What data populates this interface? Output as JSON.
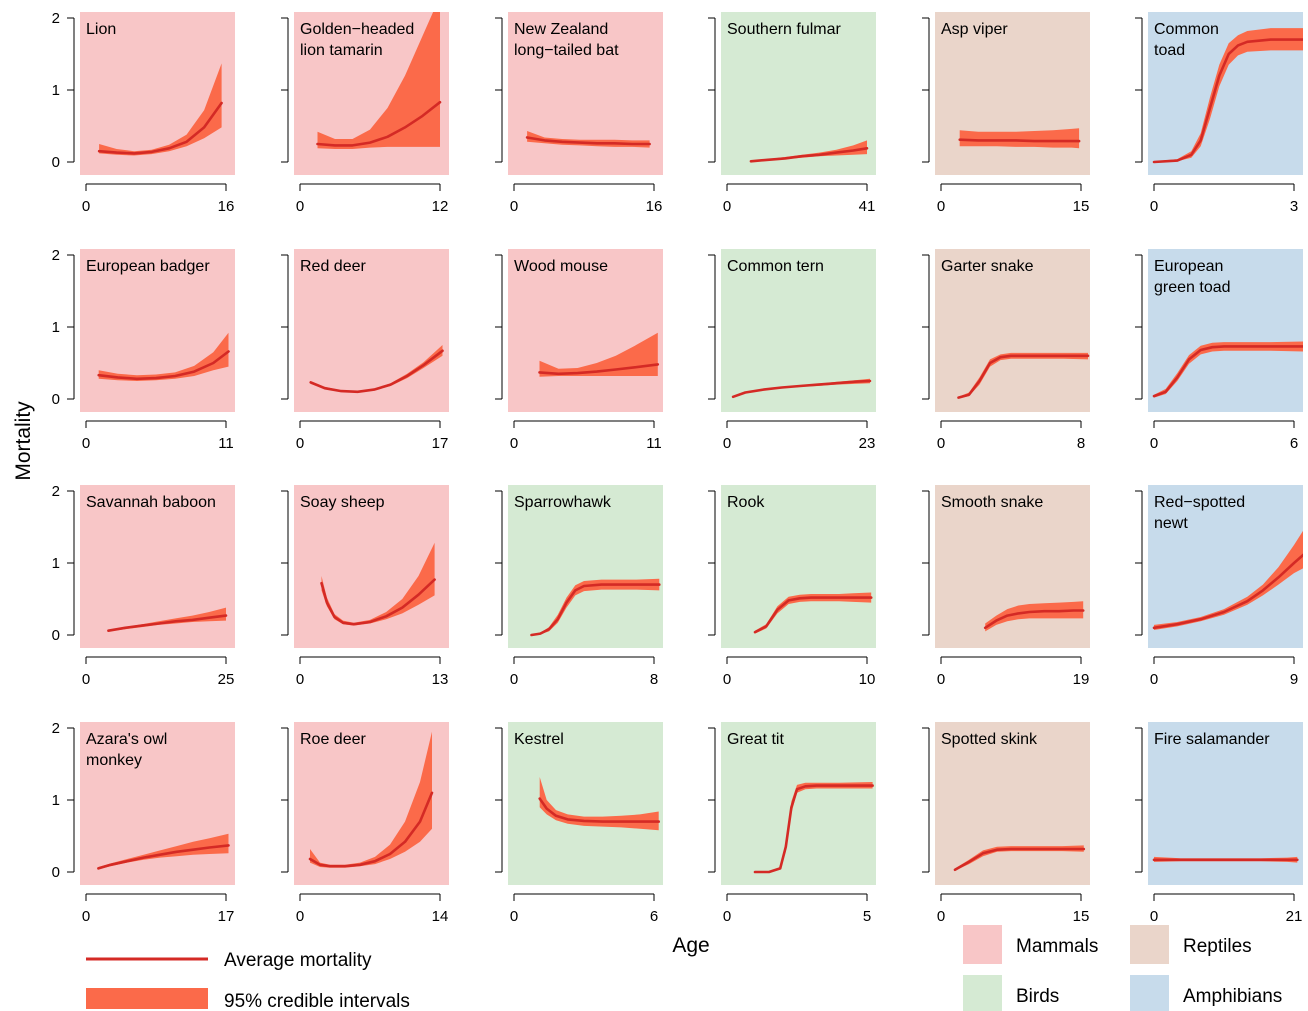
{
  "figure": {
    "xlabel": "Age",
    "ylabel": "Mortality"
  },
  "legend": {
    "line_label": "Average mortality",
    "band_label": "95% credible intervals",
    "line_color": "#d42a25",
    "band_color": "#fb6a4a",
    "groups": [
      {
        "name": "Mammals",
        "color": "#f8c6c7"
      },
      {
        "name": "Birds",
        "color": "#d5ead3"
      },
      {
        "name": "Reptiles",
        "color": "#ead5ca"
      },
      {
        "name": "Amphibians",
        "color": "#c7dbeb"
      }
    ]
  },
  "chart_data": [
    {
      "type": "line",
      "title": "Lion",
      "group": "Mammals",
      "xlim": [
        0,
        16
      ],
      "ylim": [
        0,
        2
      ],
      "x": [
        1.5,
        3.5,
        5.5,
        7.5,
        9.5,
        11.5,
        13.5,
        15.5
      ],
      "y": [
        0.15,
        0.13,
        0.12,
        0.14,
        0.19,
        0.28,
        0.48,
        0.82
      ],
      "lower": [
        0.12,
        0.1,
        0.09,
        0.11,
        0.15,
        0.22,
        0.33,
        0.48
      ],
      "upper": [
        0.25,
        0.18,
        0.15,
        0.17,
        0.24,
        0.38,
        0.72,
        1.37
      ]
    },
    {
      "type": "line",
      "title": "Golden−headed\nlion tamarin",
      "group": "Mammals",
      "xlim": [
        0,
        12
      ],
      "ylim": [
        0,
        2
      ],
      "x": [
        1.5,
        3,
        4.5,
        6,
        7.5,
        9,
        10.5,
        12
      ],
      "y": [
        0.25,
        0.23,
        0.23,
        0.27,
        0.35,
        0.48,
        0.64,
        0.83
      ],
      "lower": [
        0.19,
        0.18,
        0.18,
        0.2,
        0.21,
        0.21,
        0.21,
        0.21
      ],
      "upper": [
        0.42,
        0.32,
        0.32,
        0.45,
        0.75,
        1.2,
        1.75,
        2.3
      ]
    },
    {
      "type": "line",
      "title": "New Zealand\nlong−tailed bat",
      "group": "Mammals",
      "xlim": [
        0,
        16
      ],
      "ylim": [
        0,
        2
      ],
      "x": [
        1.5,
        3.5,
        5.5,
        7.5,
        9.5,
        11.5,
        13.5,
        15.5
      ],
      "y": [
        0.34,
        0.3,
        0.28,
        0.27,
        0.26,
        0.26,
        0.25,
        0.25
      ],
      "lower": [
        0.28,
        0.26,
        0.24,
        0.23,
        0.22,
        0.21,
        0.21,
        0.2
      ],
      "upper": [
        0.43,
        0.34,
        0.32,
        0.31,
        0.31,
        0.31,
        0.3,
        0.3
      ]
    },
    {
      "type": "line",
      "title": "Southern fulmar",
      "group": "Birds",
      "xlim": [
        0,
        41
      ],
      "ylim": [
        0,
        2
      ],
      "x": [
        7,
        12,
        17,
        22,
        27,
        32,
        37,
        41
      ],
      "y": [
        0.01,
        0.03,
        0.05,
        0.08,
        0.1,
        0.13,
        0.16,
        0.19
      ],
      "lower": [
        0.0,
        0.02,
        0.04,
        0.06,
        0.08,
        0.09,
        0.1,
        0.11
      ],
      "upper": [
        0.02,
        0.04,
        0.07,
        0.1,
        0.13,
        0.17,
        0.23,
        0.3
      ]
    },
    {
      "type": "line",
      "title": "Asp viper",
      "group": "Reptiles",
      "xlim": [
        0,
        15
      ],
      "ylim": [
        0,
        2
      ],
      "x": [
        2,
        4,
        6,
        8,
        10,
        12,
        14,
        14.8
      ],
      "y": [
        0.31,
        0.3,
        0.3,
        0.3,
        0.29,
        0.29,
        0.29,
        0.29
      ],
      "lower": [
        0.22,
        0.22,
        0.22,
        0.21,
        0.21,
        0.2,
        0.2,
        0.19
      ],
      "upper": [
        0.44,
        0.42,
        0.42,
        0.42,
        0.43,
        0.44,
        0.46,
        0.47
      ]
    },
    {
      "type": "line",
      "title": "Common\ntoad",
      "group": "Amphibians",
      "xlim": [
        0,
        3
      ],
      "ylim": [
        0,
        2
      ],
      "x": [
        0,
        0.5,
        0.8,
        1.0,
        1.2,
        1.4,
        1.6,
        1.8,
        2.0,
        2.5,
        3.0,
        3.25
      ],
      "y": [
        0.0,
        0.02,
        0.1,
        0.3,
        0.75,
        1.2,
        1.5,
        1.62,
        1.67,
        1.7,
        1.7,
        1.7
      ],
      "lower": [
        0.0,
        0.01,
        0.06,
        0.22,
        0.6,
        1.05,
        1.35,
        1.48,
        1.53,
        1.55,
        1.55,
        1.55
      ],
      "upper": [
        0.01,
        0.04,
        0.15,
        0.4,
        0.9,
        1.35,
        1.65,
        1.76,
        1.82,
        1.86,
        1.86,
        1.86
      ]
    },
    {
      "type": "line",
      "title": "European badger",
      "group": "Mammals",
      "xlim": [
        0,
        11
      ],
      "ylim": [
        0,
        2
      ],
      "x": [
        1,
        2.5,
        4,
        5.5,
        7,
        8.5,
        10,
        11.2
      ],
      "y": [
        0.33,
        0.3,
        0.28,
        0.29,
        0.32,
        0.38,
        0.5,
        0.66
      ],
      "lower": [
        0.28,
        0.26,
        0.25,
        0.26,
        0.28,
        0.32,
        0.4,
        0.45
      ],
      "upper": [
        0.4,
        0.35,
        0.33,
        0.34,
        0.37,
        0.46,
        0.65,
        0.92
      ]
    },
    {
      "type": "line",
      "title": "Red deer",
      "group": "Mammals",
      "xlim": [
        0,
        17
      ],
      "ylim": [
        0,
        2
      ],
      "x": [
        1.3,
        3,
        5,
        7,
        9,
        11,
        13,
        15,
        17.3
      ],
      "y": [
        0.23,
        0.15,
        0.11,
        0.1,
        0.13,
        0.2,
        0.32,
        0.47,
        0.67
      ],
      "lower": [
        0.21,
        0.14,
        0.1,
        0.09,
        0.12,
        0.18,
        0.29,
        0.43,
        0.6
      ],
      "upper": [
        0.25,
        0.17,
        0.12,
        0.11,
        0.14,
        0.22,
        0.35,
        0.51,
        0.75
      ]
    },
    {
      "type": "line",
      "title": "Wood mouse",
      "group": "Mammals",
      "xlim": [
        0,
        11
      ],
      "ylim": [
        0,
        2
      ],
      "x": [
        2,
        3.5,
        5,
        6.5,
        8,
        9.5,
        11.3
      ],
      "y": [
        0.37,
        0.35,
        0.36,
        0.38,
        0.41,
        0.44,
        0.48
      ],
      "lower": [
        0.31,
        0.32,
        0.32,
        0.32,
        0.32,
        0.32,
        0.32
      ],
      "upper": [
        0.53,
        0.42,
        0.43,
        0.5,
        0.6,
        0.74,
        0.92
      ]
    },
    {
      "type": "line",
      "title": "Common tern",
      "group": "Birds",
      "xlim": [
        0,
        23
      ],
      "ylim": [
        0,
        2
      ],
      "x": [
        1,
        3,
        6,
        9,
        12,
        15,
        18,
        21,
        23.5
      ],
      "y": [
        0.03,
        0.09,
        0.13,
        0.16,
        0.18,
        0.2,
        0.22,
        0.24,
        0.25
      ],
      "lower": [
        0.02,
        0.08,
        0.12,
        0.15,
        0.17,
        0.18,
        0.2,
        0.21,
        0.22
      ],
      "upper": [
        0.04,
        0.1,
        0.14,
        0.17,
        0.19,
        0.21,
        0.24,
        0.26,
        0.28
      ]
    },
    {
      "type": "line",
      "title": "Garter snake",
      "group": "Reptiles",
      "xlim": [
        0,
        8
      ],
      "ylim": [
        0,
        2
      ],
      "x": [
        1,
        1.6,
        2.2,
        2.8,
        3.4,
        4,
        5,
        6,
        7,
        8.4
      ],
      "y": [
        0.02,
        0.06,
        0.25,
        0.5,
        0.58,
        0.6,
        0.6,
        0.6,
        0.6,
        0.6
      ],
      "lower": [
        0.01,
        0.04,
        0.2,
        0.45,
        0.54,
        0.56,
        0.56,
        0.56,
        0.56,
        0.55
      ],
      "upper": [
        0.03,
        0.09,
        0.3,
        0.55,
        0.62,
        0.64,
        0.64,
        0.64,
        0.64,
        0.64
      ]
    },
    {
      "type": "line",
      "title": "European\ngreen toad",
      "group": "Amphibians",
      "xlim": [
        0,
        6
      ],
      "ylim": [
        0,
        2
      ],
      "x": [
        0,
        0.5,
        1.0,
        1.5,
        2.0,
        2.5,
        3,
        4,
        5,
        6.5
      ],
      "y": [
        0.04,
        0.1,
        0.3,
        0.55,
        0.68,
        0.72,
        0.73,
        0.73,
        0.73,
        0.73
      ],
      "lower": [
        0.02,
        0.07,
        0.25,
        0.49,
        0.62,
        0.66,
        0.67,
        0.67,
        0.67,
        0.66
      ],
      "upper": [
        0.06,
        0.14,
        0.36,
        0.61,
        0.74,
        0.78,
        0.79,
        0.79,
        0.79,
        0.8
      ]
    },
    {
      "type": "line",
      "title": "Savannah baboon",
      "group": "Mammals",
      "xlim": [
        0,
        25
      ],
      "ylim": [
        0,
        2
      ],
      "x": [
        4,
        7,
        10,
        13,
        16,
        19,
        22,
        25
      ],
      "y": [
        0.06,
        0.1,
        0.13,
        0.16,
        0.19,
        0.21,
        0.24,
        0.27
      ],
      "lower": [
        0.05,
        0.08,
        0.11,
        0.14,
        0.16,
        0.18,
        0.19,
        0.2
      ],
      "upper": [
        0.07,
        0.11,
        0.15,
        0.19,
        0.23,
        0.27,
        0.32,
        0.38
      ]
    },
    {
      "type": "line",
      "title": "Soay sheep",
      "group": "Mammals",
      "xlim": [
        0,
        13
      ],
      "ylim": [
        0,
        2
      ],
      "x": [
        2,
        2.5,
        3.2,
        4,
        5,
        6.5,
        8,
        9.5,
        11,
        12.5
      ],
      "y": [
        0.72,
        0.45,
        0.25,
        0.17,
        0.15,
        0.18,
        0.26,
        0.38,
        0.56,
        0.77
      ],
      "lower": [
        0.62,
        0.4,
        0.22,
        0.15,
        0.13,
        0.16,
        0.22,
        0.3,
        0.42,
        0.55
      ],
      "upper": [
        0.82,
        0.52,
        0.29,
        0.2,
        0.17,
        0.21,
        0.32,
        0.5,
        0.82,
        1.28
      ]
    },
    {
      "type": "line",
      "title": "Sparrowhawk",
      "group": "Birds",
      "xlim": [
        0,
        8
      ],
      "ylim": [
        0,
        2
      ],
      "x": [
        1,
        1.5,
        2,
        2.5,
        3,
        3.5,
        4,
        5,
        6,
        7,
        8.3
      ],
      "y": [
        0.0,
        0.02,
        0.08,
        0.22,
        0.45,
        0.62,
        0.68,
        0.7,
        0.7,
        0.7,
        0.7
      ],
      "lower": [
        0.0,
        0.01,
        0.05,
        0.17,
        0.38,
        0.55,
        0.61,
        0.63,
        0.63,
        0.63,
        0.62
      ],
      "upper": [
        0.01,
        0.03,
        0.11,
        0.28,
        0.52,
        0.69,
        0.75,
        0.77,
        0.77,
        0.77,
        0.78
      ]
    },
    {
      "type": "line",
      "title": "Rook",
      "group": "Birds",
      "xlim": [
        0,
        10
      ],
      "ylim": [
        0,
        2
      ],
      "x": [
        2,
        2.8,
        3.6,
        4.4,
        5.2,
        6,
        7,
        8,
        9,
        10.3
      ],
      "y": [
        0.04,
        0.12,
        0.35,
        0.48,
        0.51,
        0.52,
        0.52,
        0.52,
        0.52,
        0.52
      ],
      "lower": [
        0.02,
        0.09,
        0.3,
        0.43,
        0.46,
        0.47,
        0.47,
        0.47,
        0.46,
        0.45
      ],
      "upper": [
        0.06,
        0.15,
        0.4,
        0.53,
        0.56,
        0.57,
        0.57,
        0.57,
        0.58,
        0.59
      ]
    },
    {
      "type": "line",
      "title": "Smooth snake",
      "group": "Reptiles",
      "xlim": [
        0,
        19
      ],
      "ylim": [
        0,
        2
      ],
      "x": [
        6,
        7.5,
        9,
        10.5,
        12,
        14,
        16,
        18,
        19.3
      ],
      "y": [
        0.1,
        0.2,
        0.27,
        0.3,
        0.32,
        0.33,
        0.33,
        0.34,
        0.34
      ],
      "lower": [
        0.05,
        0.14,
        0.19,
        0.22,
        0.23,
        0.23,
        0.23,
        0.23,
        0.23
      ],
      "upper": [
        0.16,
        0.27,
        0.36,
        0.41,
        0.43,
        0.44,
        0.45,
        0.46,
        0.47
      ]
    },
    {
      "type": "line",
      "title": "Red−spotted\nnewt",
      "group": "Amphibians",
      "xlim": [
        0,
        9
      ],
      "ylim": [
        0,
        2
      ],
      "x": [
        0,
        1.5,
        3,
        4.5,
        6,
        7,
        8,
        9,
        9.8
      ],
      "y": [
        0.1,
        0.15,
        0.22,
        0.32,
        0.47,
        0.62,
        0.8,
        1.0,
        1.15
      ],
      "lower": [
        0.07,
        0.12,
        0.19,
        0.28,
        0.42,
        0.55,
        0.7,
        0.86,
        0.95
      ],
      "upper": [
        0.14,
        0.18,
        0.25,
        0.36,
        0.53,
        0.7,
        0.94,
        1.25,
        1.52
      ]
    },
    {
      "type": "line",
      "title": "Azara's owl\nmonkey",
      "group": "Mammals",
      "xlim": [
        0,
        17
      ],
      "ylim": [
        0,
        2
      ],
      "x": [
        1.5,
        3,
        5,
        7,
        9,
        11,
        13,
        15,
        17.3
      ],
      "y": [
        0.05,
        0.1,
        0.15,
        0.2,
        0.24,
        0.28,
        0.31,
        0.34,
        0.37
      ],
      "lower": [
        0.04,
        0.08,
        0.13,
        0.17,
        0.2,
        0.22,
        0.24,
        0.25,
        0.26
      ],
      "upper": [
        0.07,
        0.12,
        0.18,
        0.24,
        0.3,
        0.36,
        0.42,
        0.47,
        0.53
      ]
    },
    {
      "type": "line",
      "title": "Roe deer",
      "group": "Mammals",
      "xlim": [
        0,
        14
      ],
      "ylim": [
        0,
        2
      ],
      "x": [
        1,
        2,
        3,
        4.5,
        6,
        7.5,
        9,
        10.5,
        12,
        13.2
      ],
      "y": [
        0.18,
        0.1,
        0.08,
        0.08,
        0.1,
        0.15,
        0.25,
        0.42,
        0.7,
        1.1
      ],
      "lower": [
        0.13,
        0.07,
        0.06,
        0.06,
        0.08,
        0.11,
        0.18,
        0.28,
        0.42,
        0.6
      ],
      "upper": [
        0.32,
        0.13,
        0.1,
        0.1,
        0.13,
        0.21,
        0.38,
        0.7,
        1.25,
        1.95
      ]
    },
    {
      "type": "line",
      "title": "Kestrel",
      "group": "Birds",
      "xlim": [
        0,
        6
      ],
      "ylim": [
        0,
        2
      ],
      "x": [
        1.1,
        1.4,
        1.8,
        2.3,
        3,
        3.8,
        4.6,
        5.4,
        6.2
      ],
      "y": [
        1.02,
        0.88,
        0.78,
        0.73,
        0.71,
        0.7,
        0.7,
        0.7,
        0.7
      ],
      "lower": [
        0.9,
        0.8,
        0.72,
        0.67,
        0.64,
        0.63,
        0.62,
        0.6,
        0.58
      ],
      "upper": [
        1.32,
        1.0,
        0.86,
        0.8,
        0.77,
        0.77,
        0.78,
        0.8,
        0.84
      ]
    },
    {
      "type": "line",
      "title": "Great tit",
      "group": "Birds",
      "xlim": [
        0,
        5
      ],
      "ylim": [
        0,
        2
      ],
      "x": [
        1,
        1.5,
        1.9,
        2.1,
        2.3,
        2.5,
        2.8,
        3.2,
        4,
        5.2
      ],
      "y": [
        0.0,
        0.0,
        0.05,
        0.35,
        0.9,
        1.15,
        1.19,
        1.2,
        1.2,
        1.2
      ],
      "lower": [
        0.0,
        0.0,
        0.03,
        0.28,
        0.82,
        1.1,
        1.15,
        1.16,
        1.16,
        1.16
      ],
      "upper": [
        0.01,
        0.01,
        0.07,
        0.42,
        0.98,
        1.21,
        1.24,
        1.24,
        1.24,
        1.25
      ]
    },
    {
      "type": "line",
      "title": "Spotted skink",
      "group": "Reptiles",
      "xlim": [
        0,
        15
      ],
      "ylim": [
        0,
        2
      ],
      "x": [
        1.5,
        3,
        4.5,
        6,
        7.5,
        9,
        11,
        13,
        15.3
      ],
      "y": [
        0.03,
        0.14,
        0.26,
        0.31,
        0.32,
        0.32,
        0.32,
        0.32,
        0.32
      ],
      "lower": [
        0.02,
        0.11,
        0.22,
        0.28,
        0.29,
        0.29,
        0.29,
        0.29,
        0.28
      ],
      "upper": [
        0.05,
        0.17,
        0.3,
        0.35,
        0.36,
        0.36,
        0.36,
        0.36,
        0.37
      ]
    },
    {
      "type": "line",
      "title": "Fire salamander",
      "group": "Amphibians",
      "xlim": [
        0,
        21
      ],
      "ylim": [
        0,
        2
      ],
      "x": [
        0,
        4,
        8,
        12,
        16,
        20,
        21.5
      ],
      "y": [
        0.17,
        0.17,
        0.17,
        0.17,
        0.17,
        0.17,
        0.17
      ],
      "lower": [
        0.14,
        0.15,
        0.15,
        0.15,
        0.15,
        0.14,
        0.13
      ],
      "upper": [
        0.21,
        0.19,
        0.19,
        0.19,
        0.19,
        0.2,
        0.21
      ]
    }
  ]
}
